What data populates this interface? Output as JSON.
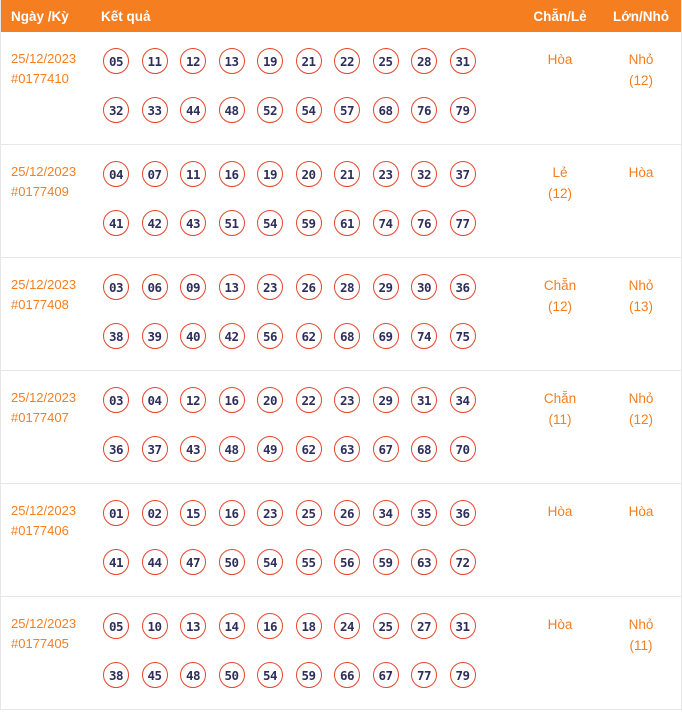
{
  "colors": {
    "header_bg": "#F57E20",
    "accent": "#F57E20",
    "ball_border": "#E4472D",
    "ball_text": "#2E2E5B",
    "separator": "#E6E6E6"
  },
  "header": {
    "col_date": "Ngày /Kỳ",
    "col_result": "Kết quả",
    "col_even_odd": "Chẵn/Lẻ",
    "col_big_small": "Lớn/Nhỏ"
  },
  "rows": [
    {
      "date": "25/12/2023",
      "draw_id": "#0177410",
      "numbers_line1": [
        "05",
        "11",
        "12",
        "13",
        "19",
        "21",
        "22",
        "25",
        "28",
        "31"
      ],
      "numbers_line2": [
        "32",
        "33",
        "44",
        "48",
        "52",
        "54",
        "57",
        "68",
        "76",
        "79"
      ],
      "even_odd": {
        "label": "Hòa",
        "count": ""
      },
      "big_small": {
        "label": "Nhỏ",
        "count": "(12)"
      }
    },
    {
      "date": "25/12/2023",
      "draw_id": "#0177409",
      "numbers_line1": [
        "04",
        "07",
        "11",
        "16",
        "19",
        "20",
        "21",
        "23",
        "32",
        "37"
      ],
      "numbers_line2": [
        "41",
        "42",
        "43",
        "51",
        "54",
        "59",
        "61",
        "74",
        "76",
        "77"
      ],
      "even_odd": {
        "label": "Lẻ",
        "count": "(12)"
      },
      "big_small": {
        "label": "Hòa",
        "count": ""
      }
    },
    {
      "date": "25/12/2023",
      "draw_id": "#0177408",
      "numbers_line1": [
        "03",
        "06",
        "09",
        "13",
        "23",
        "26",
        "28",
        "29",
        "30",
        "36"
      ],
      "numbers_line2": [
        "38",
        "39",
        "40",
        "42",
        "56",
        "62",
        "68",
        "69",
        "74",
        "75"
      ],
      "even_odd": {
        "label": "Chẵn",
        "count": "(12)"
      },
      "big_small": {
        "label": "Nhỏ",
        "count": "(13)"
      }
    },
    {
      "date": "25/12/2023",
      "draw_id": "#0177407",
      "numbers_line1": [
        "03",
        "04",
        "12",
        "16",
        "20",
        "22",
        "23",
        "29",
        "31",
        "34"
      ],
      "numbers_line2": [
        "36",
        "37",
        "43",
        "48",
        "49",
        "62",
        "63",
        "67",
        "68",
        "70"
      ],
      "even_odd": {
        "label": "Chẵn",
        "count": "(11)"
      },
      "big_small": {
        "label": "Nhỏ",
        "count": "(12)"
      }
    },
    {
      "date": "25/12/2023",
      "draw_id": "#0177406",
      "numbers_line1": [
        "01",
        "02",
        "15",
        "16",
        "23",
        "25",
        "26",
        "34",
        "35",
        "36"
      ],
      "numbers_line2": [
        "41",
        "44",
        "47",
        "50",
        "54",
        "55",
        "56",
        "59",
        "63",
        "72"
      ],
      "even_odd": {
        "label": "Hòa",
        "count": ""
      },
      "big_small": {
        "label": "Hòa",
        "count": ""
      }
    },
    {
      "date": "25/12/2023",
      "draw_id": "#0177405",
      "numbers_line1": [
        "05",
        "10",
        "13",
        "14",
        "16",
        "18",
        "24",
        "25",
        "27",
        "31"
      ],
      "numbers_line2": [
        "38",
        "45",
        "48",
        "50",
        "54",
        "59",
        "66",
        "67",
        "77",
        "79"
      ],
      "even_odd": {
        "label": "Hòa",
        "count": ""
      },
      "big_small": {
        "label": "Nhỏ",
        "count": "(11)"
      }
    }
  ]
}
